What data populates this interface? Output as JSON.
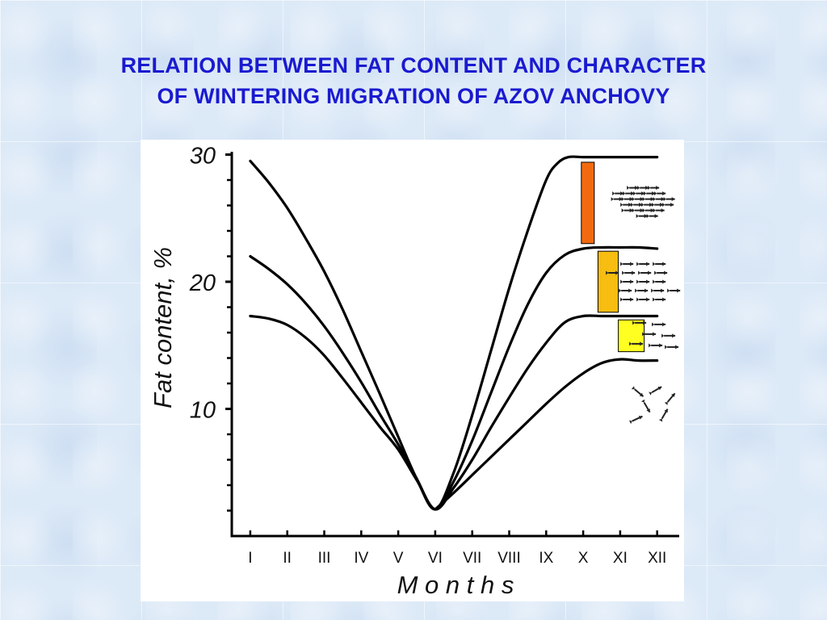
{
  "slide": {
    "title_line1": "RELATION BETWEEN FAT CONTENT AND CHARACTER",
    "title_line2": "OF WINTERING MIGRATION OF AZOV ANCHOVY",
    "title_color": "#1a1ad0",
    "background_color": "#dce9f7"
  },
  "chart_data": {
    "type": "line",
    "xlabel": "M o n t h s",
    "ylabel": "Fat content, %",
    "categories": [
      "I",
      "II",
      "III",
      "IV",
      "V",
      "VI",
      "VII",
      "VIII",
      "IX",
      "X",
      "XI",
      "XII"
    ],
    "ylim": [
      0,
      30
    ],
    "yticks": [
      10,
      20,
      30
    ],
    "ytick_labels": [
      "10",
      "20",
      "30"
    ],
    "y_minor_step": 2,
    "grid": false,
    "line_color": "#000000",
    "series": [
      {
        "x": [
          1,
          1.5,
          2,
          2.5,
          3,
          3.5,
          4,
          4.5,
          5,
          5.5,
          6,
          6.5,
          7,
          7.5,
          8,
          8.5,
          9,
          9.3,
          9.6,
          10,
          10.5,
          11,
          11.5,
          12
        ],
        "y": [
          29.5,
          27.8,
          25.8,
          23.4,
          20.8,
          17.8,
          14.5,
          11.2,
          7.8,
          4.5,
          2.1,
          5.0,
          9.5,
          14.5,
          19.5,
          24.0,
          28.0,
          29.3,
          29.8,
          29.8,
          29.8,
          29.8,
          29.8,
          29.8
        ]
      },
      {
        "x": [
          1,
          1.5,
          2,
          2.5,
          3,
          3.5,
          4,
          4.5,
          5,
          5.5,
          6,
          6.5,
          7,
          7.5,
          8,
          8.5,
          9,
          9.5,
          10,
          10.5,
          11,
          11.5,
          12
        ],
        "y": [
          22.0,
          21.0,
          19.8,
          18.3,
          16.5,
          14.4,
          12.1,
          9.6,
          7.2,
          4.5,
          2.1,
          4.3,
          7.5,
          11.2,
          14.9,
          18.2,
          20.7,
          22.1,
          22.6,
          22.7,
          22.7,
          22.7,
          22.6
        ]
      },
      {
        "x": [
          1,
          1.5,
          2,
          2.5,
          3,
          3.5,
          4,
          4.5,
          5,
          5.5,
          6,
          6.5,
          7,
          7.5,
          8,
          8.5,
          9,
          9.5,
          10,
          10.5,
          11,
          11.5,
          12
        ],
        "y": [
          17.3,
          17.1,
          16.6,
          15.6,
          14.2,
          12.4,
          10.5,
          8.6,
          6.8,
          4.4,
          2.1,
          3.8,
          6.0,
          8.5,
          10.9,
          13.2,
          15.2,
          16.8,
          17.3,
          17.3,
          17.3,
          17.3,
          17.3
        ]
      },
      {
        "x": [
          6,
          6.5,
          7,
          7.5,
          8,
          8.5,
          9,
          9.5,
          10,
          10.5,
          11,
          11.5,
          12
        ],
        "y": [
          2.1,
          3.4,
          4.8,
          6.2,
          7.6,
          9.0,
          10.4,
          11.7,
          12.8,
          13.6,
          13.9,
          13.8,
          13.8
        ]
      }
    ],
    "markers": [
      {
        "month_start": 9.95,
        "month_end": 10.3,
        "y_bottom": 23.0,
        "y_top": 29.4,
        "color": "#f26a10"
      },
      {
        "month_start": 10.4,
        "month_end": 10.95,
        "y_bottom": 17.6,
        "y_top": 22.4,
        "color": "#f7bd10"
      },
      {
        "month_start": 10.95,
        "month_end": 11.65,
        "y_bottom": 14.5,
        "y_top": 17.0,
        "color": "#ffff22"
      }
    ],
    "fish_groups": [
      {
        "pattern": "dense-school",
        "center_month": 11.65,
        "center_y": 26.5
      },
      {
        "pattern": "loose-school",
        "center_month": 11.65,
        "center_y": 20.0
      },
      {
        "pattern": "sparse-school",
        "center_month": 11.9,
        "center_y": 15.5
      },
      {
        "pattern": "scattered",
        "center_month": 11.9,
        "center_y": 10.5
      }
    ]
  }
}
